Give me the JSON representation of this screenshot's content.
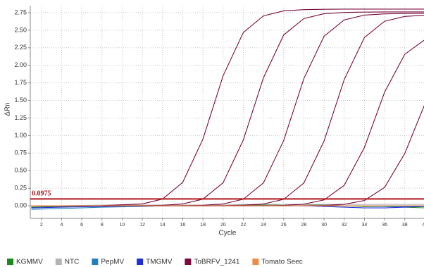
{
  "chart_data": {
    "type": "line",
    "x_label": "Cycle",
    "y_label": "ΔRn",
    "x": [
      1,
      4,
      8,
      12,
      14,
      16,
      18,
      20,
      22,
      24,
      26,
      28,
      30,
      32,
      34,
      36,
      38,
      40
    ],
    "xlim": [
      0.9,
      39.9
    ],
    "xticks": [
      2,
      4,
      6,
      8,
      10,
      12,
      14,
      16,
      18,
      20,
      22,
      24,
      26,
      28,
      30,
      32,
      34,
      36,
      38,
      40
    ],
    "ylim": [
      -0.18,
      2.85
    ],
    "yticks": [
      {
        "value": 0,
        "label": "0.00"
      },
      {
        "value": 0.25,
        "label": "0.25"
      },
      {
        "value": 0.5,
        "label": "0.50"
      },
      {
        "value": 0.75,
        "label": "0.75"
      },
      {
        "value": 1,
        "label": "1.00"
      },
      {
        "value": 1.25,
        "label": "1.25"
      },
      {
        "value": 1.5,
        "label": "1.50"
      },
      {
        "value": 1.75,
        "label": "1.75"
      },
      {
        "value": 2,
        "label": "2.00"
      },
      {
        "value": 2.25,
        "label": "2.25"
      },
      {
        "value": 2.5,
        "label": "2.50"
      },
      {
        "value": 2.75,
        "label": "2.75"
      }
    ],
    "grid": true,
    "threshold": 0.0975,
    "threshold_color": "#b0151b",
    "legend_position": "bottom",
    "series": [
      {
        "name": "KGMMV",
        "color": "#1e8a1e",
        "curves": [
          [
            -0.02,
            -0.01,
            0,
            0.01,
            0.01,
            0.01,
            0.01,
            0.01,
            0.01,
            0.01,
            0.02,
            0.02,
            0.01,
            0,
            -0.01,
            -0.01,
            -0.02,
            -0.03
          ]
        ]
      },
      {
        "name": "NTC",
        "color": "#b4b4b4",
        "curves": [
          [
            0,
            0,
            0.01,
            0.01,
            0.01,
            0.01,
            0.01,
            0.01,
            0.02,
            0.02,
            0.02,
            0.02,
            0.02,
            0.02,
            0.02,
            0.02,
            0.02,
            0.02
          ]
        ]
      },
      {
        "name": "PepMV",
        "color": "#1f7fbf",
        "curves": [
          [
            -0.05,
            -0.04,
            -0.02,
            -0.01,
            0,
            0,
            0,
            0,
            0,
            0,
            0,
            0,
            0,
            0,
            0,
            -0.01,
            -0.01,
            -0.01
          ]
        ]
      },
      {
        "name": "TMGMV",
        "color": "#1f2fd6",
        "curves": [
          [
            -0.03,
            -0.02,
            -0.01,
            0,
            0,
            0,
            0,
            0,
            0,
            0,
            0,
            0,
            -0.01,
            -0.02,
            -0.03,
            -0.03,
            -0.02,
            -0.01
          ]
        ]
      },
      {
        "name": "ToBRFV_1241",
        "color": "#7a0a3c",
        "curves": [
          [
            0,
            0,
            0.002,
            0.026,
            0.095,
            0.333,
            0.949,
            1.851,
            2.467,
            2.705,
            2.775,
            2.793,
            2.798,
            2.8,
            2.8,
            2.8,
            2.8,
            2.8
          ],
          [
            0,
            0,
            0,
            0.002,
            0.007,
            0.026,
            0.094,
            0.328,
            0.936,
            1.824,
            2.432,
            2.666,
            2.735,
            2.753,
            2.758,
            2.76,
            2.76,
            2.76
          ],
          [
            0,
            0,
            0,
            0,
            0,
            0.002,
            0.007,
            0.025,
            0.093,
            0.326,
            0.929,
            1.811,
            2.414,
            2.647,
            2.715,
            2.733,
            2.738,
            2.74
          ],
          [
            0,
            0,
            0,
            0,
            0,
            0,
            0,
            0.002,
            0.007,
            0.025,
            0.092,
            0.324,
            0.922,
            1.798,
            2.396,
            2.628,
            2.696,
            2.713
          ],
          [
            0,
            0,
            0,
            0,
            0,
            0,
            0,
            0,
            0,
            0.002,
            0.006,
            0.023,
            0.083,
            0.292,
            0.831,
            1.619,
            2.158,
            2.367
          ],
          [
            0,
            0,
            0,
            0,
            0,
            0,
            0,
            0,
            0,
            0,
            0,
            0.002,
            0.005,
            0.02,
            0.075,
            0.262,
            0.746,
            1.454
          ]
        ]
      },
      {
        "name": "Tomato Seec",
        "color": "#f08a4b",
        "curves": [
          [
            0,
            0,
            0,
            0,
            0,
            0,
            0,
            0,
            0,
            0,
            0,
            0,
            0,
            0,
            0,
            0,
            0,
            0
          ]
        ]
      }
    ]
  }
}
